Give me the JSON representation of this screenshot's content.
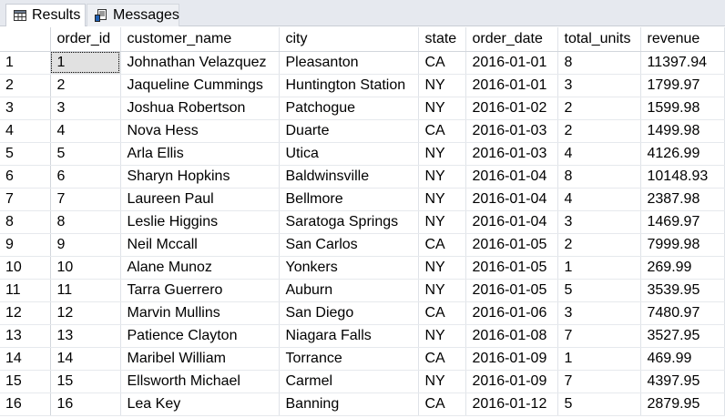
{
  "tabs": {
    "results_label": "Results",
    "messages_label": "Messages"
  },
  "grid": {
    "columns": [
      "order_id",
      "customer_name",
      "city",
      "state",
      "order_date",
      "total_units",
      "revenue"
    ],
    "rows": [
      [
        "1",
        "1",
        "Johnathan Velazquez",
        "Pleasanton",
        "CA",
        "2016-01-01",
        "8",
        "11397.94"
      ],
      [
        "2",
        "2",
        "Jaqueline Cummings",
        "Huntington Station",
        "NY",
        "2016-01-01",
        "3",
        "1799.97"
      ],
      [
        "3",
        "3",
        "Joshua Robertson",
        "Patchogue",
        "NY",
        "2016-01-02",
        "2",
        "1599.98"
      ],
      [
        "4",
        "4",
        "Nova Hess",
        "Duarte",
        "CA",
        "2016-01-03",
        "2",
        "1499.98"
      ],
      [
        "5",
        "5",
        "Arla Ellis",
        "Utica",
        "NY",
        "2016-01-03",
        "4",
        "4126.99"
      ],
      [
        "6",
        "6",
        "Sharyn Hopkins",
        "Baldwinsville",
        "NY",
        "2016-01-04",
        "8",
        "10148.93"
      ],
      [
        "7",
        "7",
        "Laureen Paul",
        "Bellmore",
        "NY",
        "2016-01-04",
        "4",
        "2387.98"
      ],
      [
        "8",
        "8",
        "Leslie Higgins",
        "Saratoga Springs",
        "NY",
        "2016-01-04",
        "3",
        "1469.97"
      ],
      [
        "9",
        "9",
        "Neil Mccall",
        "San Carlos",
        "CA",
        "2016-01-05",
        "2",
        "7999.98"
      ],
      [
        "10",
        "10",
        "Alane Munoz",
        "Yonkers",
        "NY",
        "2016-01-05",
        "1",
        "269.99"
      ],
      [
        "11",
        "11",
        "Tarra Guerrero",
        "Auburn",
        "NY",
        "2016-01-05",
        "5",
        "3539.95"
      ],
      [
        "12",
        "12",
        "Marvin Mullins",
        "San Diego",
        "CA",
        "2016-01-06",
        "3",
        "7480.97"
      ],
      [
        "13",
        "13",
        "Patience Clayton",
        "Niagara Falls",
        "NY",
        "2016-01-08",
        "7",
        "3527.95"
      ],
      [
        "14",
        "14",
        "Maribel William",
        "Torrance",
        "CA",
        "2016-01-09",
        "1",
        "469.99"
      ],
      [
        "15",
        "15",
        "Ellsworth Michael",
        "Carmel",
        "NY",
        "2016-01-09",
        "7",
        "4397.95"
      ],
      [
        "16",
        "16",
        "Lea Key",
        "Banning",
        "CA",
        "2016-01-12",
        "5",
        "2879.95"
      ]
    ]
  },
  "icons": {
    "results": "grid-icon",
    "messages": "messages-icon"
  }
}
